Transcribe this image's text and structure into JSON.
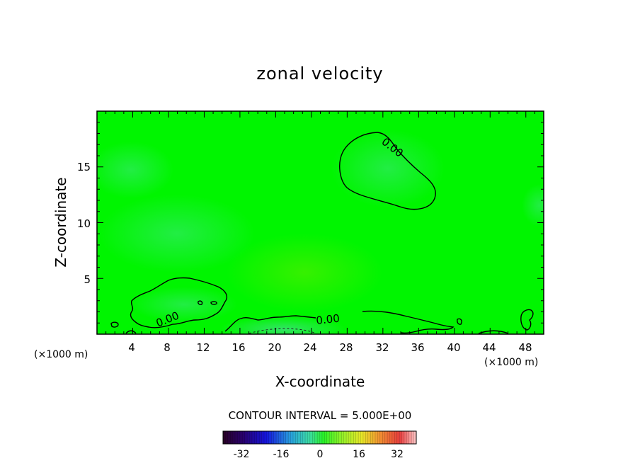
{
  "chart_data": {
    "type": "heatmap",
    "title": "zonal velocity",
    "xlabel": "X-coordinate",
    "ylabel": "Z-coordinate",
    "x_unit_left": "(×1000 m)",
    "x_unit_right": "(×1000 m)",
    "xlim": [
      0,
      50
    ],
    "ylim": [
      0,
      20
    ],
    "x_ticks": [
      "4",
      "8",
      "12",
      "16",
      "20",
      "24",
      "28",
      "32",
      "36",
      "40",
      "44",
      "48"
    ],
    "y_ticks": [
      "5",
      "10",
      "15"
    ],
    "contour_interval_text": "CONTOUR INTERVAL = 5.000E+00",
    "contour_labels": [
      "0.00",
      "0.00",
      "0.00"
    ],
    "colorbar": {
      "ticks": [
        "-32",
        "-16",
        "0",
        "16",
        "32"
      ],
      "range": [
        -40,
        40
      ]
    },
    "field_note_values": {
      "background": 0,
      "near_surface_min": -3,
      "mid_max": 2
    },
    "colors": {
      "field_base": "#00f500",
      "field_weak_negative": "#22ee44",
      "field_weak_positive": "#2cf000",
      "contour": "#000000"
    }
  }
}
